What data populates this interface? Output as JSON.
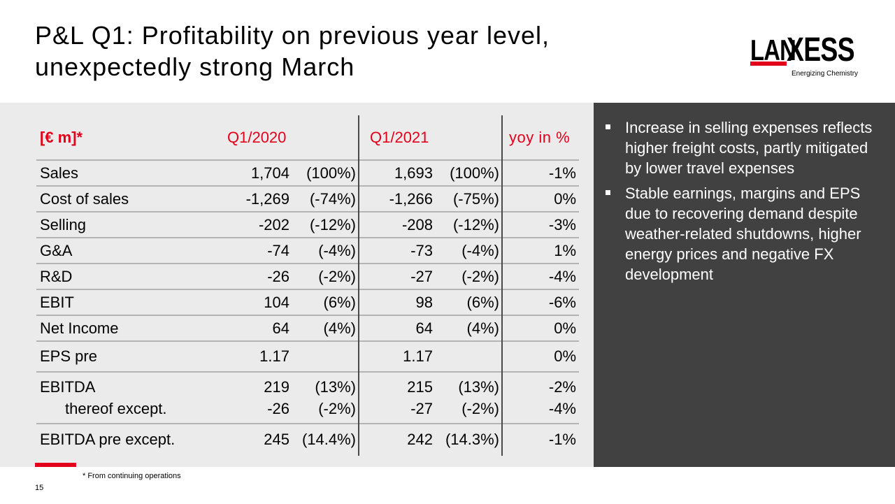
{
  "title": {
    "line1": "P&L Q1: Profitability on previous year level,",
    "line2": "unexpectedly strong March"
  },
  "logo": {
    "lan": "LAN",
    "xess": "XESS",
    "tagline": "Energizing Chemistry",
    "brand_color": "#e2001a"
  },
  "table": {
    "header": {
      "unit": "[€ m]*",
      "q1_2020": "Q1/2020",
      "q1_2021": "Q1/2021",
      "yoy": "yoy in %"
    },
    "rows": [
      {
        "label": "Sales",
        "v2020": "1,704",
        "p2020": "(100%)",
        "v2021": "1,693",
        "p2021": "(100%)",
        "yoy": "-1%"
      },
      {
        "label": "Cost of sales",
        "v2020": "-1,269",
        "p2020": "(-74%)",
        "v2021": "-1,266",
        "p2021": "(-75%)",
        "yoy": "0%"
      },
      {
        "label": "Selling",
        "v2020": "-202",
        "p2020": "(-12%)",
        "v2021": "-208",
        "p2021": "(-12%)",
        "yoy": "-3%"
      },
      {
        "label": "G&A",
        "v2020": "-74",
        "p2020": "(-4%)",
        "v2021": "-73",
        "p2021": "(-4%)",
        "yoy": "1%"
      },
      {
        "label": "R&D",
        "v2020": "-26",
        "p2020": "(-2%)",
        "v2021": "-27",
        "p2021": "(-2%)",
        "yoy": "-4%"
      },
      {
        "label": "EBIT",
        "v2020": "104",
        "p2020": "(6%)",
        "v2021": "98",
        "p2021": "(6%)",
        "yoy": "-6%"
      },
      {
        "label": "Net Income",
        "v2020": "64",
        "p2020": "(4%)",
        "v2021": "64",
        "p2021": "(4%)",
        "yoy": "0%"
      },
      {
        "label": "EPS pre",
        "v2020": "1.17",
        "p2020": "",
        "v2021": "1.17",
        "p2021": "",
        "yoy": "0%"
      },
      {
        "label": "EBITDA",
        "v2020": "219",
        "p2020": "(13%)",
        "v2021": "215",
        "p2021": "(13%)",
        "yoy": "-2%"
      },
      {
        "label": "thereof except.",
        "v2020": "-26",
        "p2020": "(-2%)",
        "v2021": "-27",
        "p2021": "(-2%)",
        "yoy": "-4%"
      },
      {
        "label": "EBITDA pre except.",
        "v2020": "245",
        "p2020": "(14.4%)",
        "v2021": "242",
        "p2021": "(14.3%)",
        "yoy": "-1%"
      }
    ]
  },
  "bullets": [
    "Increase in selling expenses reflects higher freight costs, partly mitigated by lower travel expenses",
    "Stable earnings, margins and EPS  due to recovering demand despite weather-related shutdowns, higher energy prices and negative FX development"
  ],
  "footnote": "* From continuing operations",
  "page_number": "15"
}
